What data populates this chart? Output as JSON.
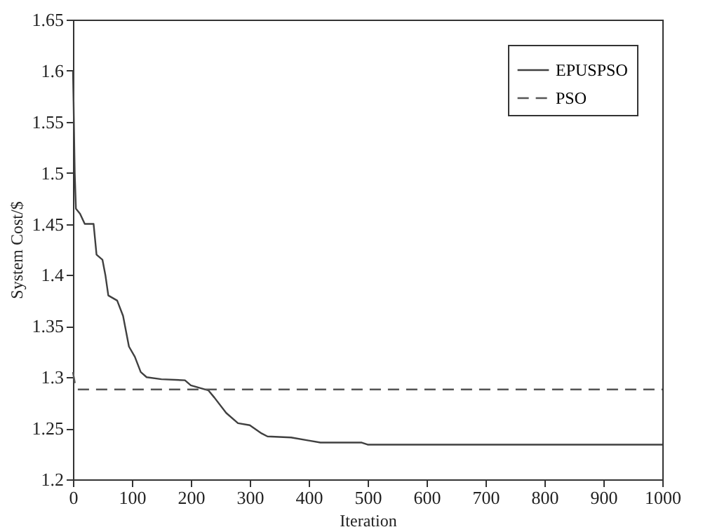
{
  "chart_data": {
    "type": "line",
    "xlabel": "Iteration",
    "ylabel": "System Cost/$",
    "xlim": [
      0,
      1000
    ],
    "xticks": [
      0,
      100,
      200,
      300,
      400,
      500,
      600,
      700,
      800,
      900,
      1000
    ],
    "ylim": [
      1.2,
      1.65
    ],
    "yticks": [
      1.2,
      1.25,
      1.3,
      1.35,
      1.4,
      1.45,
      1.5,
      1.55,
      1.6,
      1.65
    ],
    "grid": false,
    "legend": "top right",
    "series": [
      {
        "name": "EPUSPSO",
        "color": "#404040",
        "line_style": "solid",
        "x": [
          0,
          1,
          3,
          5,
          12,
          20,
          35,
          40,
          50,
          55,
          60,
          75,
          85,
          95,
          105,
          115,
          125,
          150,
          190,
          200,
          230,
          240,
          260,
          280,
          300,
          320,
          330,
          370,
          400,
          420,
          490,
          500,
          1000
        ],
        "values": [
          1.6,
          1.57,
          1.5,
          1.465,
          1.46,
          1.45,
          1.45,
          1.42,
          1.415,
          1.4,
          1.38,
          1.375,
          1.36,
          1.33,
          1.32,
          1.305,
          1.3,
          1.298,
          1.297,
          1.292,
          1.287,
          1.28,
          1.265,
          1.255,
          1.253,
          1.245,
          1.242,
          1.241,
          1.238,
          1.236,
          1.236,
          1.234,
          1.234
        ]
      },
      {
        "name": "PSO",
        "color": "#555555",
        "line_style": "dashed",
        "x": [
          0,
          3,
          8,
          1000
        ],
        "values": [
          1.305,
          1.295,
          1.288,
          1.288
        ]
      }
    ]
  }
}
